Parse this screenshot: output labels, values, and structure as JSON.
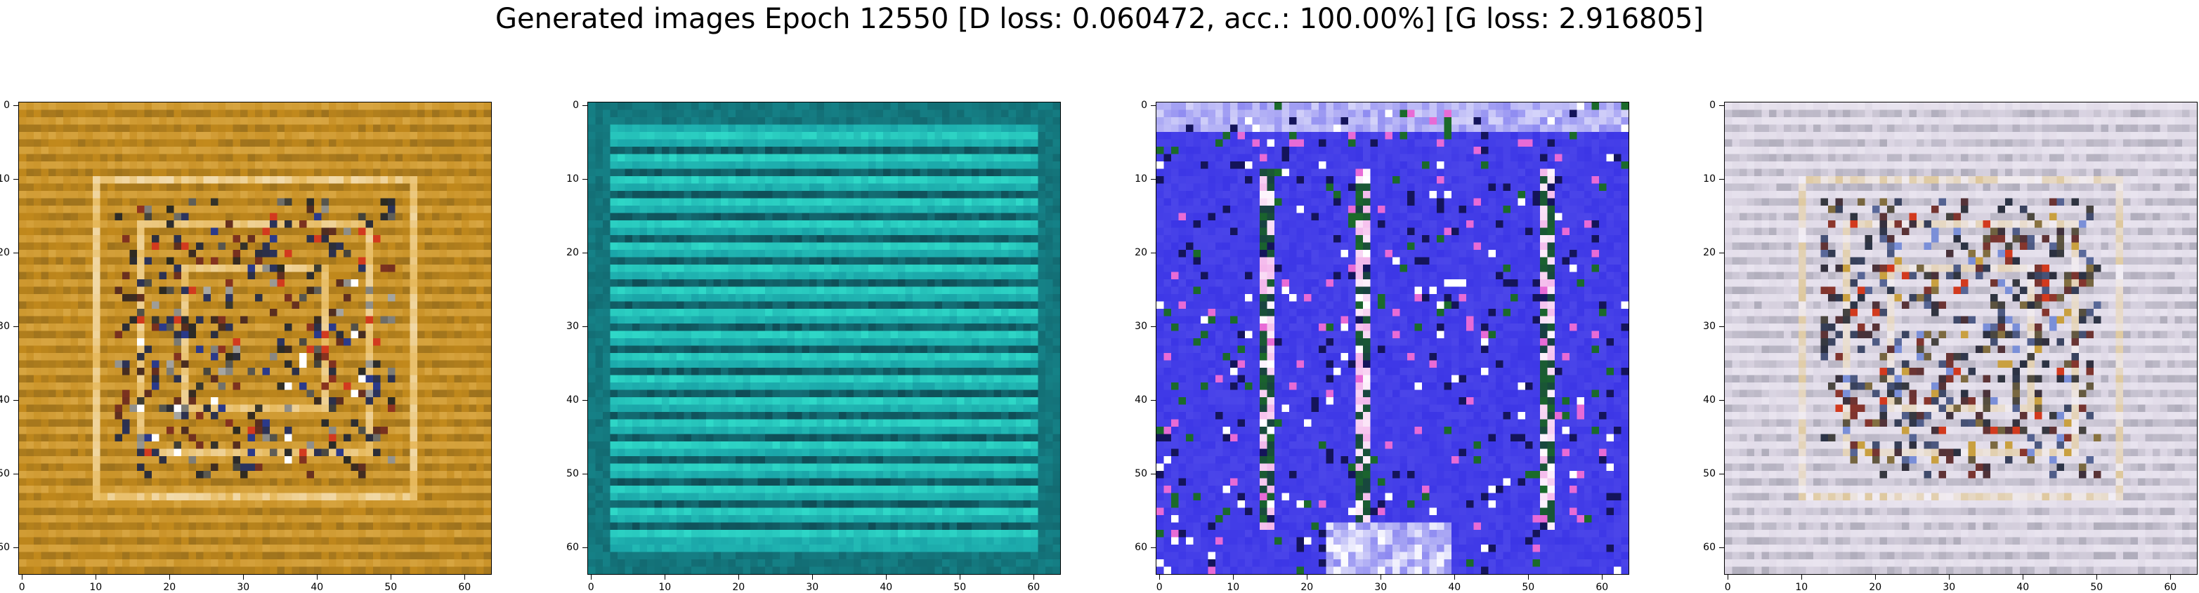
{
  "figure": {
    "title": "Generated images Epoch 12550 [D loss: 0.060472, acc.: 100.00%] [G loss: 2.916805]"
  },
  "axes_ticks": {
    "x": [
      "0",
      "10",
      "20",
      "30",
      "40",
      "50",
      "60"
    ],
    "y": [
      "0",
      "10",
      "20",
      "30",
      "40",
      "50",
      "60"
    ]
  },
  "image_grid_size": 64,
  "panels": [
    {
      "id": "panel-1",
      "base_color": "#c38a1c",
      "stripe_color": "#e6b85a",
      "dark_color": "#2c2a20",
      "accent_colors": [
        "#d23a1e",
        "#2b3a8a",
        "#ffffff"
      ],
      "pattern": "nested-frames"
    },
    {
      "id": "panel-2",
      "base_color": "#1aa5a8",
      "stripe_color": "#2fd9c8",
      "dark_color": "#0b2f3a",
      "accent_colors": [
        "#3fc7e0",
        "#1d5a7a"
      ],
      "pattern": "horizontal-stripes"
    },
    {
      "id": "panel-3",
      "base_color": "#3b35e6",
      "stripe_color": "#6e6af0",
      "dark_color": "#14145a",
      "accent_colors": [
        "#ffffff",
        "#e86bd6",
        "#1b6a2a"
      ],
      "pattern": "vertical-pillars"
    },
    {
      "id": "panel-4",
      "base_color": "#dcd6e4",
      "stripe_color": "#f2eef7",
      "dark_color": "#2a3040",
      "accent_colors": [
        "#7a8fd8",
        "#d23a1e",
        "#c9a040"
      ],
      "pattern": "nested-frames"
    }
  ]
}
